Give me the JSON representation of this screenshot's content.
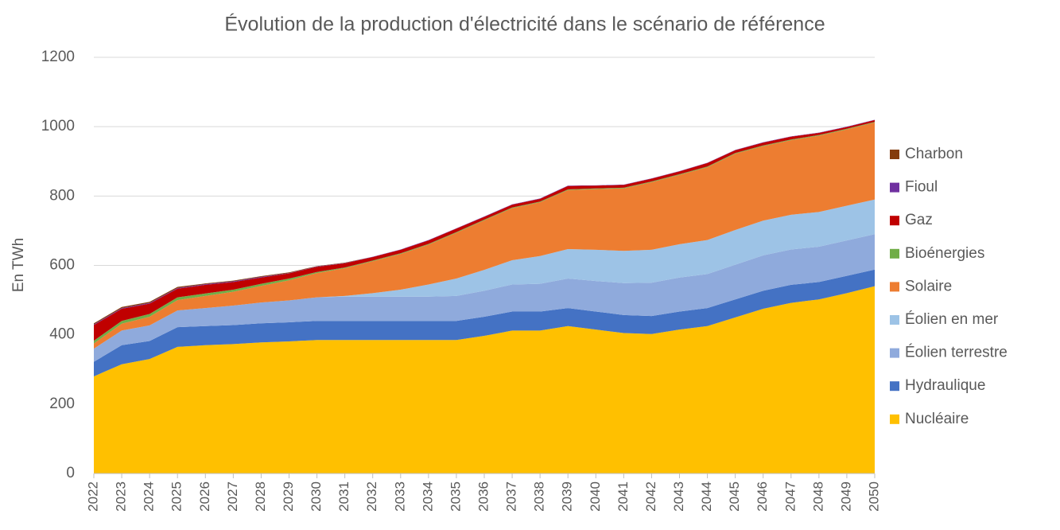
{
  "chart_data": {
    "type": "stacked_area",
    "title": "Évolution de la production d'électricité dans le scénario de référence",
    "y_label": "En TWh",
    "categories": [
      "2022",
      "2023",
      "2024",
      "2025",
      "2026",
      "2027",
      "2028",
      "2029",
      "2030",
      "2031",
      "2032",
      "2033",
      "2034",
      "2035",
      "2036",
      "2037",
      "2038",
      "2039",
      "2040",
      "2041",
      "2042",
      "2043",
      "2044",
      "2045",
      "2046",
      "2047",
      "2048",
      "2049",
      "2050"
    ],
    "ylim": [
      0,
      1200
    ],
    "yticks": [
      0,
      200,
      400,
      600,
      800,
      1000,
      1200
    ],
    "grid": true,
    "legend": "right",
    "series": [
      {
        "name": "Nucléaire",
        "color": "#ffc000",
        "values": [
          280,
          315,
          330,
          365,
          370,
          373,
          378,
          381,
          385,
          385,
          385,
          385,
          385,
          385,
          397,
          412,
          412,
          425,
          415,
          405,
          402,
          415,
          425,
          450,
          475,
          492,
          502,
          520,
          540
        ]
      },
      {
        "name": "Hydraulique",
        "color": "#4472c4",
        "values": [
          42,
          55,
          52,
          57,
          55,
          55,
          55,
          55,
          55,
          55,
          55,
          55,
          55,
          55,
          55,
          55,
          55,
          52,
          52,
          52,
          52,
          52,
          52,
          52,
          52,
          52,
          50,
          50,
          48
        ]
      },
      {
        "name": "Éolien terrestre",
        "color": "#8faadc",
        "values": [
          38,
          42,
          45,
          48,
          52,
          56,
          60,
          63,
          68,
          70,
          70,
          70,
          70,
          72,
          75,
          78,
          80,
          85,
          88,
          92,
          96,
          98,
          98,
          100,
          102,
          102,
          102,
          102,
          102
        ]
      },
      {
        "name": "Éolien en mer",
        "color": "#9dc3e6",
        "values": [
          0,
          0,
          0,
          0,
          0,
          0,
          0,
          0,
          0,
          2,
          10,
          20,
          35,
          50,
          60,
          70,
          80,
          85,
          90,
          93,
          95,
          96,
          98,
          100,
          100,
          100,
          100,
          100,
          100
        ]
      },
      {
        "name": "Solaire",
        "color": "#ed7d31",
        "values": [
          15,
          20,
          25,
          30,
          35,
          40,
          48,
          58,
          70,
          80,
          92,
          103,
          115,
          132,
          143,
          150,
          155,
          170,
          175,
          180,
          195,
          200,
          210,
          220,
          215,
          215,
          220,
          220,
          222
        ]
      },
      {
        "name": "Bioénergies",
        "color": "#70ad47",
        "values": [
          8,
          8,
          8,
          8,
          7,
          6,
          6,
          5,
          3,
          2,
          2,
          2,
          2,
          2,
          2,
          2,
          2,
          2,
          2,
          2,
          2,
          2,
          2,
          2,
          2,
          2,
          2,
          2,
          2
        ]
      },
      {
        "name": "Gaz",
        "color": "#c00000",
        "values": [
          45,
          35,
          30,
          25,
          25,
          22,
          18,
          15,
          15,
          12,
          10,
          10,
          10,
          10,
          8,
          8,
          8,
          10,
          8,
          8,
          8,
          8,
          10,
          8,
          8,
          8,
          6,
          5,
          5
        ]
      },
      {
        "name": "Fioul",
        "color": "#7030a0",
        "values": [
          2,
          2,
          2,
          2,
          2,
          2,
          2,
          1,
          1,
          1,
          1,
          1,
          1,
          1,
          1,
          1,
          1,
          1,
          1,
          1,
          1,
          1,
          1,
          1,
          1,
          1,
          1,
          1,
          1
        ]
      },
      {
        "name": "Charbon",
        "color": "#843c0c",
        "values": [
          3,
          3,
          3,
          3,
          2,
          2,
          2,
          2,
          1,
          1,
          0,
          0,
          0,
          0,
          0,
          0,
          0,
          0,
          0,
          0,
          0,
          0,
          0,
          0,
          0,
          0,
          0,
          0,
          0
        ]
      }
    ]
  }
}
